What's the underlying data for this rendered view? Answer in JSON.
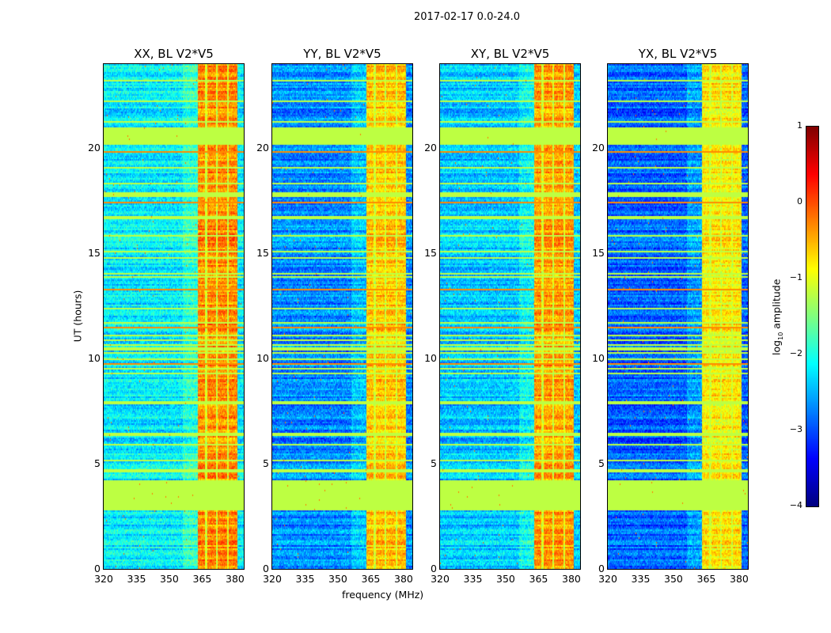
{
  "figure_title": "2017-02-17 0.0-24.0",
  "chart_data": {
    "type": "heatmap",
    "xlabel": "frequency (MHz)",
    "ylabel": "UT (hours)",
    "xlim": [
      320,
      384
    ],
    "ylim": [
      0,
      24
    ],
    "xticks": [
      "320",
      "335",
      "350",
      "365",
      "380"
    ],
    "xtick_values": [
      320,
      335,
      350,
      365,
      380
    ],
    "yticks": [
      "0",
      "5",
      "10",
      "15",
      "20"
    ],
    "ytick_values": [
      0,
      5,
      10,
      15,
      20
    ],
    "colormap": "jet",
    "colorbar": {
      "label_prefix": "log",
      "label_sub": "10",
      "label_suffix": " amplitude",
      "range": [
        -4,
        1
      ],
      "ticks": [
        "1",
        "0",
        "−1",
        "−2",
        "−3",
        "−4"
      ],
      "tick_values": [
        1,
        0,
        -1,
        -2,
        -3,
        -4
      ]
    },
    "panels": [
      {
        "title": "XX, BL V2*V5",
        "background_level": -2.2,
        "rfi_level": -0.3
      },
      {
        "title": "YY, BL V2*V5",
        "background_level": -2.7,
        "rfi_level": -0.6
      },
      {
        "title": "XY, BL V2*V5",
        "background_level": -2.4,
        "rfi_level": -0.4
      },
      {
        "title": "YX, BL V2*V5",
        "background_level": -2.9,
        "rfi_level": -0.8
      }
    ],
    "rfi_band_mhz": [
      363,
      381
    ],
    "flagged_hours": [
      [
        2.8,
        4.2
      ],
      [
        20.2,
        21.0
      ]
    ],
    "flagged_level": -1.2
  }
}
